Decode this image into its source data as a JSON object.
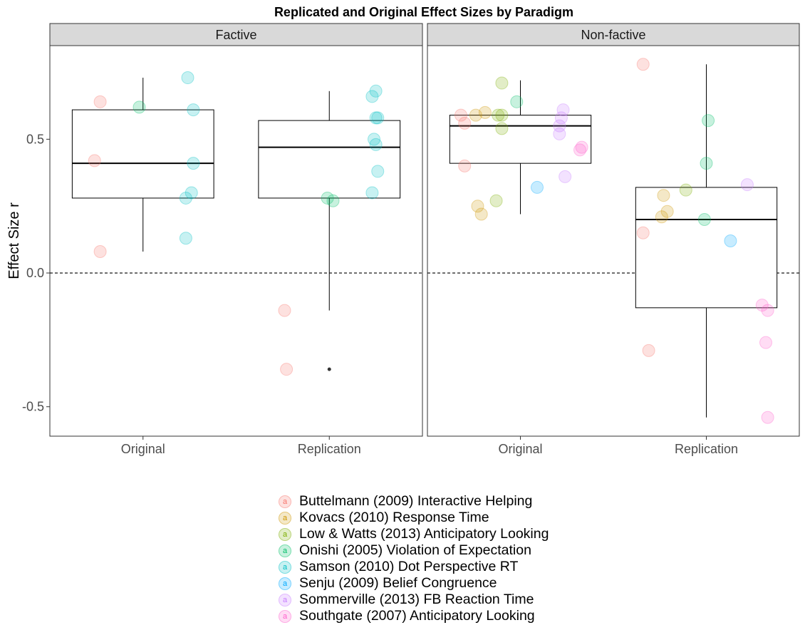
{
  "chart_data": {
    "type": "boxplot",
    "title": "Replicated and Original Effect Sizes by Paradigm",
    "ylabel": "Effect Size r",
    "xlabel": "",
    "ylim": [
      -0.61,
      0.85
    ],
    "yticks": [
      0.5,
      0.0,
      -0.5
    ],
    "ytick_labels": [
      "0.5",
      "0.0",
      "-0.5"
    ],
    "reference_line": 0,
    "grid": false,
    "legend_position": "bottom",
    "categories": [
      "Original",
      "Replication"
    ],
    "panels": [
      {
        "name": "Factive",
        "boxes": [
          {
            "category": "Original",
            "lower_whisker": 0.08,
            "q1": 0.28,
            "median": 0.41,
            "q3": 0.61,
            "upper_whisker": 0.73,
            "outliers": []
          },
          {
            "category": "Replication",
            "lower_whisker": -0.14,
            "q1": 0.28,
            "median": 0.47,
            "q3": 0.57,
            "upper_whisker": 0.68,
            "outliers": [
              -0.36
            ]
          }
        ],
        "points": [
          {
            "category": "Original",
            "jitter": -0.23,
            "y": 0.64,
            "series": 0
          },
          {
            "category": "Original",
            "jitter": -0.26,
            "y": 0.42,
            "series": 0
          },
          {
            "category": "Original",
            "jitter": -0.23,
            "y": 0.08,
            "series": 0
          },
          {
            "category": "Original",
            "jitter": -0.02,
            "y": 0.62,
            "series": 3
          },
          {
            "category": "Original",
            "jitter": 0.24,
            "y": 0.73,
            "series": 4
          },
          {
            "category": "Original",
            "jitter": 0.27,
            "y": 0.61,
            "series": 4
          },
          {
            "category": "Original",
            "jitter": 0.27,
            "y": 0.41,
            "series": 4
          },
          {
            "category": "Original",
            "jitter": 0.26,
            "y": 0.3,
            "series": 4
          },
          {
            "category": "Original",
            "jitter": 0.23,
            "y": 0.28,
            "series": 4
          },
          {
            "category": "Original",
            "jitter": 0.23,
            "y": 0.13,
            "series": 4
          },
          {
            "category": "Replication",
            "jitter": -0.24,
            "y": -0.14,
            "series": 0
          },
          {
            "category": "Replication",
            "jitter": -0.23,
            "y": -0.36,
            "series": 0
          },
          {
            "category": "Replication",
            "jitter": -0.01,
            "y": 0.28,
            "series": 3
          },
          {
            "category": "Replication",
            "jitter": 0.02,
            "y": 0.27,
            "series": 3
          },
          {
            "category": "Replication",
            "jitter": 0.23,
            "y": 0.66,
            "series": 4
          },
          {
            "category": "Replication",
            "jitter": 0.25,
            "y": 0.68,
            "series": 4
          },
          {
            "category": "Replication",
            "jitter": 0.25,
            "y": 0.58,
            "series": 4
          },
          {
            "category": "Replication",
            "jitter": 0.26,
            "y": 0.58,
            "series": 4
          },
          {
            "category": "Replication",
            "jitter": 0.24,
            "y": 0.5,
            "series": 4
          },
          {
            "category": "Replication",
            "jitter": 0.25,
            "y": 0.48,
            "series": 4
          },
          {
            "category": "Replication",
            "jitter": 0.26,
            "y": 0.38,
            "series": 4
          },
          {
            "category": "Replication",
            "jitter": 0.23,
            "y": 0.3,
            "series": 4
          }
        ]
      },
      {
        "name": "Non-factive",
        "boxes": [
          {
            "category": "Original",
            "lower_whisker": 0.22,
            "q1": 0.41,
            "median": 0.55,
            "q3": 0.59,
            "upper_whisker": 0.72,
            "outliers": []
          },
          {
            "category": "Replication",
            "lower_whisker": -0.54,
            "q1": -0.13,
            "median": 0.2,
            "q3": 0.32,
            "upper_whisker": 0.78,
            "outliers": []
          }
        ],
        "points": [
          {
            "category": "Original",
            "jitter": -0.32,
            "y": 0.59,
            "series": 0
          },
          {
            "category": "Original",
            "jitter": -0.3,
            "y": 0.56,
            "series": 0
          },
          {
            "category": "Original",
            "jitter": -0.3,
            "y": 0.4,
            "series": 0
          },
          {
            "category": "Original",
            "jitter": -0.24,
            "y": 0.59,
            "series": 1
          },
          {
            "category": "Original",
            "jitter": -0.19,
            "y": 0.6,
            "series": 1
          },
          {
            "category": "Original",
            "jitter": -0.23,
            "y": 0.25,
            "series": 1
          },
          {
            "category": "Original",
            "jitter": -0.21,
            "y": 0.22,
            "series": 1
          },
          {
            "category": "Original",
            "jitter": -0.1,
            "y": 0.71,
            "series": 2
          },
          {
            "category": "Original",
            "jitter": -0.12,
            "y": 0.59,
            "series": 2
          },
          {
            "category": "Original",
            "jitter": -0.1,
            "y": 0.59,
            "series": 2
          },
          {
            "category": "Original",
            "jitter": -0.1,
            "y": 0.54,
            "series": 2
          },
          {
            "category": "Original",
            "jitter": -0.13,
            "y": 0.27,
            "series": 2
          },
          {
            "category": "Original",
            "jitter": -0.02,
            "y": 0.64,
            "series": 3
          },
          {
            "category": "Original",
            "jitter": 0.09,
            "y": 0.32,
            "series": 5
          },
          {
            "category": "Original",
            "jitter": 0.23,
            "y": 0.61,
            "series": 6
          },
          {
            "category": "Original",
            "jitter": 0.22,
            "y": 0.58,
            "series": 6
          },
          {
            "category": "Original",
            "jitter": 0.21,
            "y": 0.55,
            "series": 6
          },
          {
            "category": "Original",
            "jitter": 0.21,
            "y": 0.52,
            "series": 6
          },
          {
            "category": "Original",
            "jitter": 0.24,
            "y": 0.36,
            "series": 6
          },
          {
            "category": "Original",
            "jitter": 0.33,
            "y": 0.47,
            "series": 7
          },
          {
            "category": "Original",
            "jitter": 0.32,
            "y": 0.46,
            "series": 7
          },
          {
            "category": "Replication",
            "jitter": -0.34,
            "y": 0.78,
            "series": 0
          },
          {
            "category": "Replication",
            "jitter": -0.34,
            "y": 0.15,
            "series": 0
          },
          {
            "category": "Replication",
            "jitter": -0.31,
            "y": -0.29,
            "series": 0
          },
          {
            "category": "Replication",
            "jitter": -0.23,
            "y": 0.29,
            "series": 1
          },
          {
            "category": "Replication",
            "jitter": -0.21,
            "y": 0.23,
            "series": 1
          },
          {
            "category": "Replication",
            "jitter": -0.24,
            "y": 0.21,
            "series": 1
          },
          {
            "category": "Replication",
            "jitter": -0.11,
            "y": 0.31,
            "series": 2
          },
          {
            "category": "Replication",
            "jitter": 0.01,
            "y": 0.57,
            "series": 3
          },
          {
            "category": "Replication",
            "jitter": 0.0,
            "y": 0.41,
            "series": 3
          },
          {
            "category": "Replication",
            "jitter": -0.01,
            "y": 0.2,
            "series": 3
          },
          {
            "category": "Replication",
            "jitter": 0.13,
            "y": 0.12,
            "series": 5
          },
          {
            "category": "Replication",
            "jitter": 0.22,
            "y": 0.33,
            "series": 6
          },
          {
            "category": "Replication",
            "jitter": 0.3,
            "y": -0.12,
            "series": 7
          },
          {
            "category": "Replication",
            "jitter": 0.33,
            "y": -0.14,
            "series": 7
          },
          {
            "category": "Replication",
            "jitter": 0.32,
            "y": -0.26,
            "series": 7
          },
          {
            "category": "Replication",
            "jitter": 0.33,
            "y": -0.54,
            "series": 7
          }
        ]
      }
    ],
    "series": [
      {
        "name": "Buttelmann (2009) Interactive Helping",
        "color": "#F8766D"
      },
      {
        "name": "Kovacs (2010) Response Time",
        "color": "#CD9600"
      },
      {
        "name": "Low & Watts (2013) Anticipatory Looking",
        "color": "#7CAE00"
      },
      {
        "name": "Onishi (2005) Violation of Expectation",
        "color": "#00BE67"
      },
      {
        "name": "Samson (2010) Dot Perspective RT",
        "color": "#00BFC4"
      },
      {
        "name": "Senju (2009) Belief Congruence",
        "color": "#00A9FF"
      },
      {
        "name": "Sommerville (2013) FB Reaction Time",
        "color": "#C77CFF"
      },
      {
        "name": "Southgate (2007) Anticipatory Looking",
        "color": "#FF61CC"
      }
    ],
    "legend_glyph": "a"
  }
}
